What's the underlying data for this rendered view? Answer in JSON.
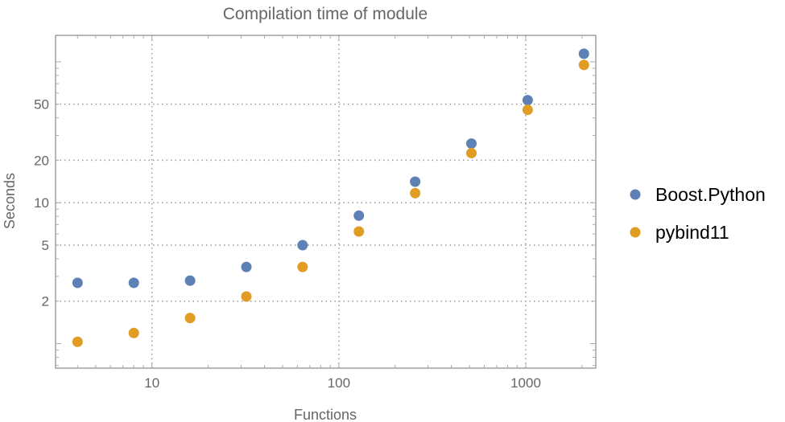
{
  "chart_data": {
    "type": "scatter",
    "title": "Compilation time of module",
    "xlabel": "Functions",
    "ylabel": "Seconds",
    "xscale": "log",
    "yscale": "log",
    "xlim": [
      3.05,
      2370
    ],
    "ylim": [
      0.67,
      154
    ],
    "xticks": [
      10,
      100,
      1000
    ],
    "yticks": [
      2,
      5,
      10,
      20,
      50
    ],
    "grid": true,
    "legend_position": "right",
    "series": [
      {
        "name": "Boost.Python",
        "color": "#5E81B5",
        "x": [
          4,
          8,
          16,
          32,
          64,
          128,
          256,
          512,
          1024,
          2048
        ],
        "y": [
          2.7,
          2.7,
          2.8,
          3.5,
          5.0,
          8.1,
          14.1,
          26.3,
          53.4,
          114
        ]
      },
      {
        "name": "pybind11",
        "color": "#E19C24",
        "x": [
          4,
          8,
          16,
          32,
          64,
          128,
          256,
          512,
          1024,
          2048
        ],
        "y": [
          1.03,
          1.19,
          1.52,
          2.16,
          3.5,
          6.25,
          11.7,
          22.5,
          45.6,
          95
        ]
      }
    ]
  }
}
